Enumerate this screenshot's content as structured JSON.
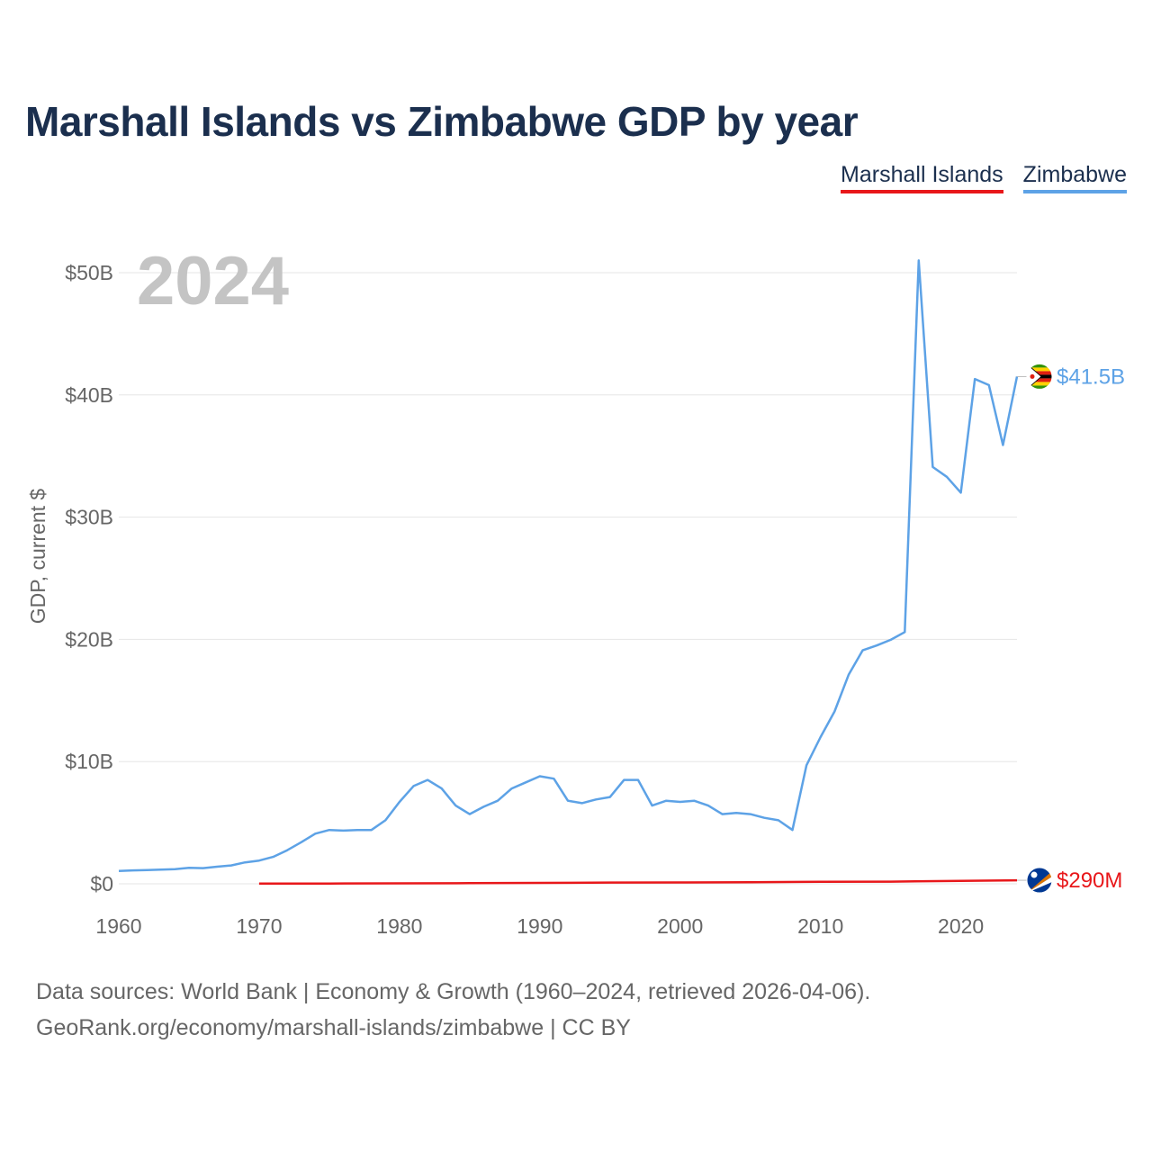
{
  "title": "Marshall Islands vs Zimbabwe GDP by year",
  "legend": {
    "items": [
      {
        "name": "Marshall Islands",
        "color": "#e8171a"
      },
      {
        "name": "Zimbabwe",
        "color": "#5da2e6"
      }
    ]
  },
  "year_overlay": "2024",
  "source": {
    "line1": "Data sources: World Bank | Economy & Growth (1960–2024, retrieved 2026-04-06).",
    "line2": "GeoRank.org/economy/marshall-islands/zimbabwe | CC BY"
  },
  "chart_data": {
    "type": "line",
    "title": "Marshall Islands vs Zimbabwe GDP by year",
    "xlabel": "",
    "ylabel": "GDP, current $",
    "xlim": [
      1960,
      2024
    ],
    "ylim": [
      0,
      50
    ],
    "y_unit": "billions USD",
    "x_ticks": [
      1960,
      1970,
      1980,
      1990,
      2000,
      2010,
      2020
    ],
    "x_tick_labels": [
      "1960",
      "1970",
      "1980",
      "1990",
      "2000",
      "2010",
      "2020"
    ],
    "y_ticks": [
      0,
      10,
      20,
      30,
      40,
      50
    ],
    "y_tick_labels": [
      "$0",
      "$10B",
      "$20B",
      "$30B",
      "$40B",
      "$50B"
    ],
    "grid": true,
    "series": [
      {
        "name": "Zimbabwe",
        "color": "#5da2e6",
        "end_label": "$41.5B",
        "end_icon": "zimbabwe-flag-icon",
        "x": [
          1960,
          1961,
          1962,
          1963,
          1964,
          1965,
          1966,
          1967,
          1968,
          1969,
          1970,
          1971,
          1972,
          1973,
          1974,
          1975,
          1976,
          1977,
          1978,
          1979,
          1980,
          1981,
          1982,
          1983,
          1984,
          1985,
          1986,
          1987,
          1988,
          1989,
          1990,
          1991,
          1992,
          1993,
          1994,
          1995,
          1996,
          1997,
          1998,
          1999,
          2000,
          2001,
          2002,
          2003,
          2004,
          2005,
          2006,
          2007,
          2008,
          2009,
          2010,
          2011,
          2012,
          2013,
          2014,
          2015,
          2016,
          2017,
          2018,
          2019,
          2020,
          2021,
          2022,
          2023,
          2024
        ],
        "values": [
          1.05,
          1.1,
          1.12,
          1.16,
          1.2,
          1.3,
          1.28,
          1.4,
          1.5,
          1.75,
          1.9,
          2.2,
          2.75,
          3.4,
          4.1,
          4.4,
          4.35,
          4.4,
          4.4,
          5.2,
          6.7,
          8.0,
          8.5,
          7.8,
          6.4,
          5.7,
          6.3,
          6.8,
          7.8,
          8.3,
          8.8,
          8.6,
          6.8,
          6.6,
          6.9,
          7.1,
          8.5,
          8.5,
          6.4,
          6.8,
          6.7,
          6.8,
          6.4,
          5.7,
          5.8,
          5.7,
          5.4,
          5.2,
          4.4,
          9.7,
          12.0,
          14.1,
          17.1,
          19.1,
          19.5,
          19.96,
          20.6,
          51.0,
          34.1,
          33.3,
          32.0,
          41.3,
          40.8,
          35.9,
          41.5
        ]
      },
      {
        "name": "Marshall Islands",
        "color": "#e8171a",
        "end_label": "$290M",
        "end_icon": "marshall-islands-flag-icon",
        "x": [
          1970,
          1975,
          1980,
          1985,
          1990,
          1995,
          2000,
          2005,
          2010,
          2015,
          2020,
          2024
        ],
        "values": [
          0.02,
          0.025,
          0.035,
          0.05,
          0.07,
          0.1,
          0.11,
          0.13,
          0.16,
          0.18,
          0.24,
          0.29
        ]
      }
    ]
  }
}
